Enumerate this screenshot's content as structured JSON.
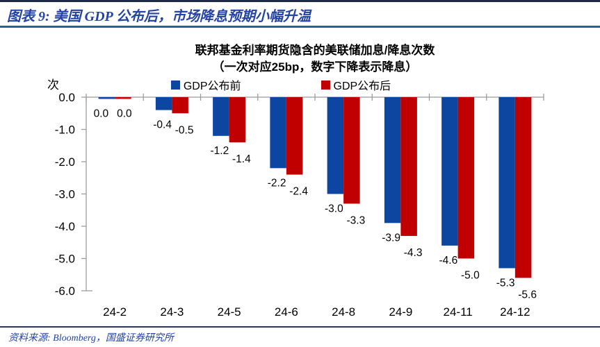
{
  "header": {
    "title": "图表 9:  美国 GDP 公布后，市场降息预期小幅升温"
  },
  "chart_data": {
    "type": "bar",
    "title": "联邦基金利率期货隐含的美联储加息/降息次数",
    "subtitle": "（一次对应25bp，数字下降表示降息）",
    "unit_label": "次",
    "categories": [
      "24-2",
      "24-3",
      "24-5",
      "24-6",
      "24-8",
      "24-9",
      "24-11",
      "24-12"
    ],
    "series": [
      {
        "name": "GDP公布前",
        "color": "#0D46A0",
        "values": [
          0.0,
          -0.4,
          -1.2,
          -2.2,
          -3.0,
          -3.9,
          -4.6,
          -5.3
        ]
      },
      {
        "name": "GDP公布后",
        "color": "#C00000",
        "values": [
          0.0,
          -0.5,
          -1.4,
          -2.4,
          -3.3,
          -4.3,
          -5.0,
          -5.6
        ]
      }
    ],
    "ylim": [
      -6.0,
      0.0
    ],
    "ytick_step": 1.0,
    "ytick_labels": [
      "0.0",
      "-1.0",
      "-2.0",
      "-3.0",
      "-4.0",
      "-5.0",
      "-6.0"
    ],
    "value_label_format": "one_decimal",
    "grid": false,
    "legend_position": "top"
  },
  "footer": {
    "source_text": "资料来源: Bloomberg，国盛证券研究所"
  },
  "colors": {
    "top_border": "#1F2B45",
    "header_text": "#2343A6",
    "separator": "#2D5AA9",
    "footer_line": "#1F3864",
    "footer_text": "#2343A6",
    "axis": "#9B9B9B",
    "text": "#000000"
  }
}
